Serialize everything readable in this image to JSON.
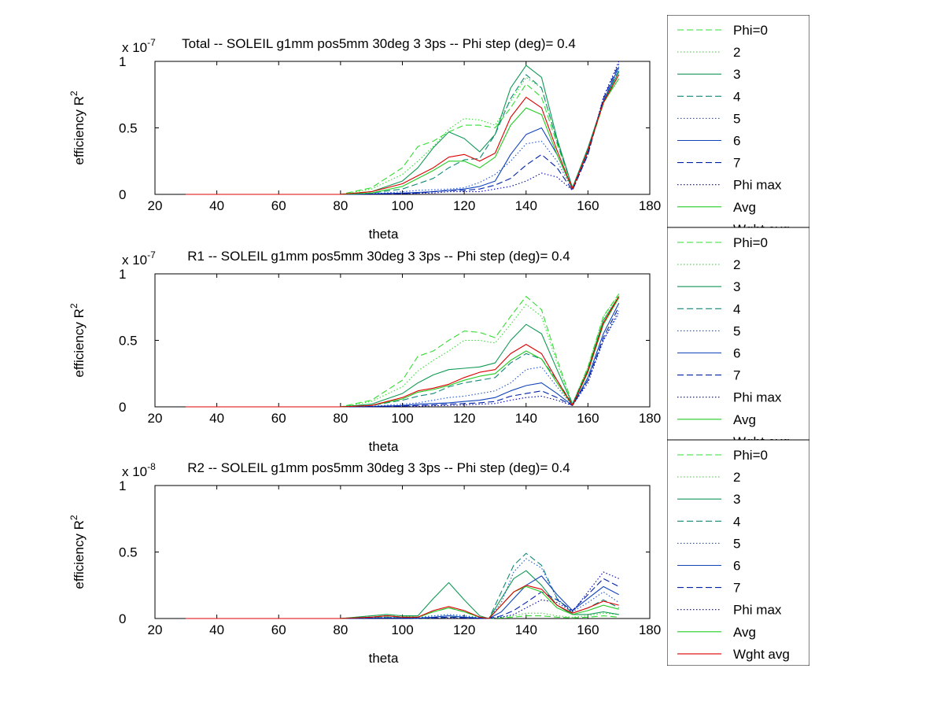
{
  "series_styles": [
    {
      "name": "Phi=0",
      "color": "#33dd33",
      "dash": "dashed"
    },
    {
      "name": "2",
      "color": "#33dd33",
      "dash": "dotted"
    },
    {
      "name": "3",
      "color": "#119955",
      "dash": "solid"
    },
    {
      "name": "4",
      "color": "#118877",
      "dash": "dashed"
    },
    {
      "name": "5",
      "color": "#2255cc",
      "dash": "dotted"
    },
    {
      "name": "6",
      "color": "#1144bb",
      "dash": "solid"
    },
    {
      "name": "7",
      "color": "#0022aa",
      "dash": "dashed"
    },
    {
      "name": "Phi max",
      "color": "#0000aa",
      "dash": "dotted"
    },
    {
      "name": "Avg",
      "color": "#22cc22",
      "dash": "solid"
    },
    {
      "name": "Wght avg",
      "color": "#dd0000",
      "dash": "solid"
    }
  ],
  "chart_data": [
    {
      "type": "line",
      "title": "Total -- SOLEIL g1mm pos5mm 30deg 3 3ps -- Phi step (deg)= 0.4",
      "xlabel": "theta",
      "ylabel": "efficiency R",
      "ylabel_sup": "2",
      "scale_label": "x 10",
      "scale_exp": "-7",
      "xlim": [
        20,
        180
      ],
      "ylim": [
        0,
        1
      ],
      "xticks": [
        20,
        40,
        60,
        80,
        100,
        120,
        140,
        160,
        180
      ],
      "yticks": [
        0,
        0.5,
        1
      ],
      "yticklabels": [
        "0",
        "0.5",
        "1"
      ],
      "legend": [
        "Phi=0",
        "2",
        "3",
        "4",
        "5",
        "6",
        "7",
        "Phi max",
        "Avg",
        "Wght avg"
      ],
      "legend_position": "outside-right",
      "x": [
        30,
        80,
        90,
        100,
        105,
        110,
        115,
        120,
        125,
        130,
        135,
        140,
        145,
        150,
        155,
        160,
        165,
        170
      ],
      "series": [
        {
          "name": "Phi=0",
          "values": [
            0,
            0,
            0.05,
            0.2,
            0.36,
            0.4,
            0.47,
            0.52,
            0.52,
            0.5,
            0.65,
            0.83,
            0.73,
            0.38,
            0.05,
            0.32,
            0.68,
            0.9
          ]
        },
        {
          "name": "2",
          "values": [
            0,
            0,
            0.04,
            0.15,
            0.25,
            0.36,
            0.49,
            0.57,
            0.56,
            0.52,
            0.7,
            0.88,
            0.8,
            0.4,
            0.05,
            0.33,
            0.68,
            0.93
          ]
        },
        {
          "name": "3",
          "values": [
            0,
            0,
            0.02,
            0.1,
            0.2,
            0.35,
            0.47,
            0.42,
            0.32,
            0.45,
            0.8,
            0.97,
            0.88,
            0.42,
            0.05,
            0.35,
            0.7,
            0.92
          ]
        },
        {
          "name": "4",
          "values": [
            0,
            0,
            0.01,
            0.04,
            0.08,
            0.12,
            0.2,
            0.26,
            0.27,
            0.45,
            0.72,
            0.9,
            0.8,
            0.4,
            0.05,
            0.34,
            0.7,
            0.93
          ]
        },
        {
          "name": "5",
          "values": [
            0,
            0,
            0.005,
            0.02,
            0.03,
            0.035,
            0.04,
            0.05,
            0.09,
            0.15,
            0.25,
            0.38,
            0.4,
            0.25,
            0.04,
            0.32,
            0.7,
            0.95
          ]
        },
        {
          "name": "6",
          "values": [
            0,
            0,
            0.004,
            0.01,
            0.015,
            0.02,
            0.03,
            0.04,
            0.06,
            0.1,
            0.3,
            0.45,
            0.5,
            0.3,
            0.04,
            0.32,
            0.7,
            0.96
          ]
        },
        {
          "name": "7",
          "values": [
            0,
            0,
            0.003,
            0.006,
            0.01,
            0.02,
            0.03,
            0.03,
            0.04,
            0.07,
            0.12,
            0.22,
            0.3,
            0.2,
            0.03,
            0.3,
            0.72,
            0.98
          ]
        },
        {
          "name": "Phi max",
          "values": [
            0,
            0,
            0.002,
            0.004,
            0.008,
            0.01,
            0.02,
            0.02,
            0.02,
            0.04,
            0.06,
            0.1,
            0.16,
            0.13,
            0.03,
            0.3,
            0.73,
            1.0
          ]
        },
        {
          "name": "Avg",
          "values": [
            0,
            0,
            0.01,
            0.06,
            0.12,
            0.18,
            0.25,
            0.25,
            0.2,
            0.28,
            0.52,
            0.65,
            0.6,
            0.3,
            0.04,
            0.33,
            0.69,
            0.87
          ]
        },
        {
          "name": "Wght avg",
          "values": [
            0,
            0,
            0.02,
            0.08,
            0.14,
            0.2,
            0.28,
            0.3,
            0.25,
            0.31,
            0.58,
            0.73,
            0.65,
            0.33,
            0.04,
            0.33,
            0.69,
            0.9
          ]
        }
      ]
    },
    {
      "type": "line",
      "title": "R1 -- SOLEIL g1mm pos5mm 30deg 3 3ps -- Phi step (deg)= 0.4",
      "xlabel": "theta",
      "ylabel": "efficiency R",
      "ylabel_sup": "2",
      "scale_label": "x 10",
      "scale_exp": "-7",
      "xlim": [
        20,
        180
      ],
      "ylim": [
        0,
        1
      ],
      "xticks": [
        20,
        40,
        60,
        80,
        100,
        120,
        140,
        160,
        180
      ],
      "yticks": [
        0,
        0.5,
        1
      ],
      "yticklabels": [
        "0",
        "0.5",
        "1"
      ],
      "legend": [
        "Phi=0",
        "2",
        "3",
        "4",
        "5",
        "6",
        "7",
        "Phi max",
        "Avg",
        "Wght avg"
      ],
      "legend_position": "outside-right",
      "x": [
        30,
        80,
        90,
        100,
        105,
        110,
        115,
        120,
        125,
        130,
        135,
        140,
        145,
        150,
        155,
        160,
        165,
        170
      ],
      "series": [
        {
          "name": "Phi=0",
          "values": [
            0,
            0,
            0.05,
            0.2,
            0.38,
            0.42,
            0.5,
            0.57,
            0.56,
            0.52,
            0.68,
            0.83,
            0.73,
            0.36,
            0.02,
            0.3,
            0.68,
            0.85
          ]
        },
        {
          "name": "2",
          "values": [
            0,
            0,
            0.04,
            0.15,
            0.27,
            0.35,
            0.42,
            0.5,
            0.5,
            0.48,
            0.62,
            0.77,
            0.68,
            0.33,
            0.02,
            0.3,
            0.68,
            0.84
          ]
        },
        {
          "name": "3",
          "values": [
            0,
            0,
            0.02,
            0.1,
            0.18,
            0.24,
            0.28,
            0.29,
            0.3,
            0.33,
            0.5,
            0.62,
            0.55,
            0.28,
            0.02,
            0.28,
            0.65,
            0.83
          ]
        },
        {
          "name": "4",
          "values": [
            0,
            0,
            0.01,
            0.05,
            0.08,
            0.1,
            0.15,
            0.18,
            0.2,
            0.22,
            0.33,
            0.4,
            0.36,
            0.2,
            0.02,
            0.26,
            0.62,
            0.82
          ]
        },
        {
          "name": "5",
          "values": [
            0,
            0,
            0.005,
            0.02,
            0.03,
            0.05,
            0.07,
            0.08,
            0.1,
            0.12,
            0.18,
            0.28,
            0.3,
            0.15,
            0.01,
            0.2,
            0.5,
            0.7
          ]
        },
        {
          "name": "6",
          "values": [
            0,
            0,
            0.003,
            0.01,
            0.02,
            0.025,
            0.03,
            0.04,
            0.05,
            0.07,
            0.12,
            0.16,
            0.18,
            0.1,
            0.01,
            0.22,
            0.55,
            0.78
          ]
        },
        {
          "name": "7",
          "values": [
            0,
            0,
            0.002,
            0.006,
            0.01,
            0.015,
            0.02,
            0.025,
            0.03,
            0.04,
            0.08,
            0.1,
            0.12,
            0.07,
            0.01,
            0.2,
            0.52,
            0.75
          ]
        },
        {
          "name": "Phi max",
          "values": [
            0,
            0,
            0.001,
            0.003,
            0.005,
            0.008,
            0.01,
            0.015,
            0.02,
            0.025,
            0.05,
            0.07,
            0.08,
            0.05,
            0.01,
            0.18,
            0.5,
            0.72
          ]
        },
        {
          "name": "Avg",
          "values": [
            0,
            0,
            0.01,
            0.06,
            0.11,
            0.13,
            0.16,
            0.2,
            0.23,
            0.25,
            0.35,
            0.42,
            0.36,
            0.18,
            0.01,
            0.26,
            0.62,
            0.82
          ]
        },
        {
          "name": "Wght avg",
          "values": [
            0,
            0,
            0.01,
            0.07,
            0.12,
            0.14,
            0.17,
            0.22,
            0.26,
            0.28,
            0.4,
            0.47,
            0.4,
            0.2,
            0.01,
            0.27,
            0.63,
            0.83
          ]
        }
      ]
    },
    {
      "type": "line",
      "title": "R2 -- SOLEIL g1mm pos5mm 30deg 3 3ps -- Phi step (deg)= 0.4",
      "xlabel": "theta",
      "ylabel": "efficiency R",
      "ylabel_sup": "2",
      "scale_label": "x 10",
      "scale_exp": "-8",
      "xlim": [
        20,
        180
      ],
      "ylim": [
        0,
        1
      ],
      "xticks": [
        20,
        40,
        60,
        80,
        100,
        120,
        140,
        160,
        180
      ],
      "yticks": [
        0,
        0.5,
        1
      ],
      "yticklabels": [
        "0",
        "0.5",
        "1"
      ],
      "legend": [
        "Phi=0",
        "2",
        "3",
        "4",
        "5",
        "6",
        "7",
        "Phi max",
        "Avg",
        "Wght avg"
      ],
      "legend_position": "outside-right",
      "x": [
        30,
        80,
        90,
        95,
        100,
        105,
        110,
        115,
        120,
        125,
        128,
        132,
        136,
        140,
        145,
        150,
        155,
        160,
        165,
        170
      ],
      "series": [
        {
          "name": "Phi=0",
          "values": [
            0,
            0,
            0.01,
            0.01,
            0.005,
            0,
            0.005,
            0.01,
            0.01,
            0.005,
            0,
            0.005,
            0.01,
            0.02,
            0.02,
            0.01,
            0.005,
            0.01,
            0.02,
            0.01
          ]
        },
        {
          "name": "2",
          "values": [
            0,
            0,
            0.02,
            0.03,
            0.02,
            0.01,
            0.02,
            0.03,
            0.02,
            0.01,
            0,
            0.01,
            0.02,
            0.04,
            0.04,
            0.02,
            0.01,
            0.02,
            0.04,
            0.03
          ]
        },
        {
          "name": "3",
          "values": [
            0,
            0,
            0.02,
            0.03,
            0.02,
            0.02,
            0.15,
            0.27,
            0.14,
            0.02,
            0,
            0.15,
            0.3,
            0.36,
            0.25,
            0.1,
            0.03,
            0.03,
            0.05,
            0.03
          ]
        },
        {
          "name": "4",
          "values": [
            0,
            0,
            0.01,
            0.02,
            0.01,
            0.01,
            0.05,
            0.08,
            0.05,
            0.01,
            0,
            0.2,
            0.4,
            0.49,
            0.4,
            0.15,
            0.04,
            0.08,
            0.14,
            0.08
          ]
        },
        {
          "name": "5",
          "values": [
            0,
            0,
            0.005,
            0.01,
            0.005,
            0.005,
            0.02,
            0.03,
            0.02,
            0.005,
            0,
            0.12,
            0.35,
            0.45,
            0.38,
            0.15,
            0.05,
            0.12,
            0.2,
            0.12
          ]
        },
        {
          "name": "6",
          "values": [
            0,
            0,
            0.003,
            0.005,
            0.003,
            0.003,
            0.01,
            0.02,
            0.01,
            0.003,
            0,
            0.05,
            0.15,
            0.25,
            0.32,
            0.18,
            0.06,
            0.15,
            0.24,
            0.18
          ]
        },
        {
          "name": "7",
          "values": [
            0,
            0,
            0.002,
            0.003,
            0.002,
            0.002,
            0.005,
            0.01,
            0.005,
            0.002,
            0,
            0.02,
            0.06,
            0.12,
            0.2,
            0.14,
            0.06,
            0.18,
            0.3,
            0.24
          ]
        },
        {
          "name": "Phi max",
          "values": [
            0,
            0,
            0.001,
            0.002,
            0.001,
            0.001,
            0.003,
            0.005,
            0.003,
            0.001,
            0,
            0.01,
            0.03,
            0.08,
            0.14,
            0.12,
            0.05,
            0.2,
            0.35,
            0.3
          ]
        },
        {
          "name": "Avg",
          "values": [
            0,
            0,
            0.01,
            0.02,
            0.01,
            0.01,
            0.05,
            0.08,
            0.05,
            0.01,
            0,
            0.1,
            0.2,
            0.24,
            0.2,
            0.08,
            0.03,
            0.06,
            0.1,
            0.07
          ]
        },
        {
          "name": "Wght avg",
          "values": [
            0,
            0,
            0.01,
            0.02,
            0.01,
            0.01,
            0.06,
            0.09,
            0.06,
            0.01,
            0,
            0.1,
            0.2,
            0.25,
            0.22,
            0.1,
            0.04,
            0.08,
            0.13,
            0.1
          ]
        }
      ]
    }
  ]
}
